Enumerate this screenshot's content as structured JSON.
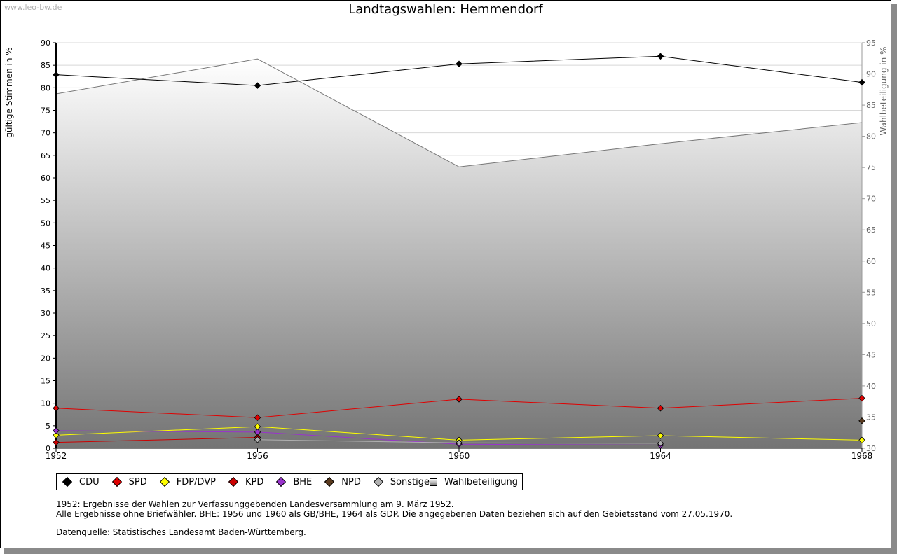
{
  "watermark": "www.leo-bw.de",
  "chart_data": {
    "type": "line",
    "title": "Landtagswahlen: Hemmendorf",
    "ylabel": "gültige Stimmen in %",
    "y2label": "Wahlbeteiligung in %",
    "x": [
      1952,
      1956,
      1960,
      1964,
      1968
    ],
    "x_tick_labels": [
      "1952",
      "1956",
      "1960",
      "1964",
      "1968"
    ],
    "ylim": [
      0,
      90
    ],
    "yticks": [
      0,
      5,
      10,
      15,
      20,
      25,
      30,
      35,
      40,
      45,
      50,
      55,
      60,
      65,
      70,
      75,
      80,
      85,
      90
    ],
    "y2lim": [
      30,
      95
    ],
    "y2ticks": [
      30,
      35,
      40,
      45,
      50,
      55,
      60,
      65,
      70,
      75,
      80,
      85,
      90,
      95
    ],
    "grid": true,
    "series": [
      {
        "name": "CDU",
        "color": "#000000",
        "values": [
          82.9,
          80.5,
          85.3,
          87.0,
          81.2
        ]
      },
      {
        "name": "SPD",
        "color": "#e00000",
        "values": [
          8.9,
          6.8,
          10.9,
          8.9,
          11.1
        ]
      },
      {
        "name": "FDP/DVP",
        "color": "#ffff00",
        "values": [
          2.9,
          4.8,
          1.8,
          2.8,
          1.8
        ]
      },
      {
        "name": "KPD",
        "color": "#cc0000",
        "values": [
          1.3,
          2.4,
          null,
          null,
          null
        ]
      },
      {
        "name": "BHE",
        "color": "#9933cc",
        "values": [
          3.9,
          3.6,
          0.9,
          0.7,
          null
        ]
      },
      {
        "name": "NPD",
        "color": "#5a3a1e",
        "values": [
          null,
          null,
          null,
          null,
          6.1
        ]
      },
      {
        "name": "Sonstige",
        "color": "#b0b0b0",
        "values": [
          null,
          1.9,
          1.2,
          1.1,
          null
        ]
      }
    ],
    "turnout": {
      "name": "Wahlbeteiligung",
      "axis": "right",
      "values": [
        86.8,
        92.4,
        75.1,
        78.8,
        82.2
      ]
    }
  },
  "legend": {
    "items": [
      {
        "label": "CDU",
        "color": "#000000"
      },
      {
        "label": "SPD",
        "color": "#e00000"
      },
      {
        "label": "FDP/DVP",
        "color": "#ffff00"
      },
      {
        "label": "KPD",
        "color": "#cc0000"
      },
      {
        "label": "BHE",
        "color": "#9933cc"
      },
      {
        "label": "NPD",
        "color": "#5a3a1e"
      },
      {
        "label": "Sonstige",
        "color": "#b0b0b0"
      }
    ],
    "turnout_label": "Wahlbeteiligung"
  },
  "notes": {
    "line1": "1952: Ergebnisse der Wahlen zur Verfassunggebenden Landesversammlung am 9. März 1952.",
    "line2": "Alle Ergebnisse ohne Briefwähler. BHE: 1956 und 1960 als GB/BHE, 1964 als GDP. Die angegebenen Daten beziehen sich auf den Gebietsstand vom 27.05.1970.",
    "source": "Datenquelle: Statistisches Landesamt Baden-Württemberg."
  }
}
